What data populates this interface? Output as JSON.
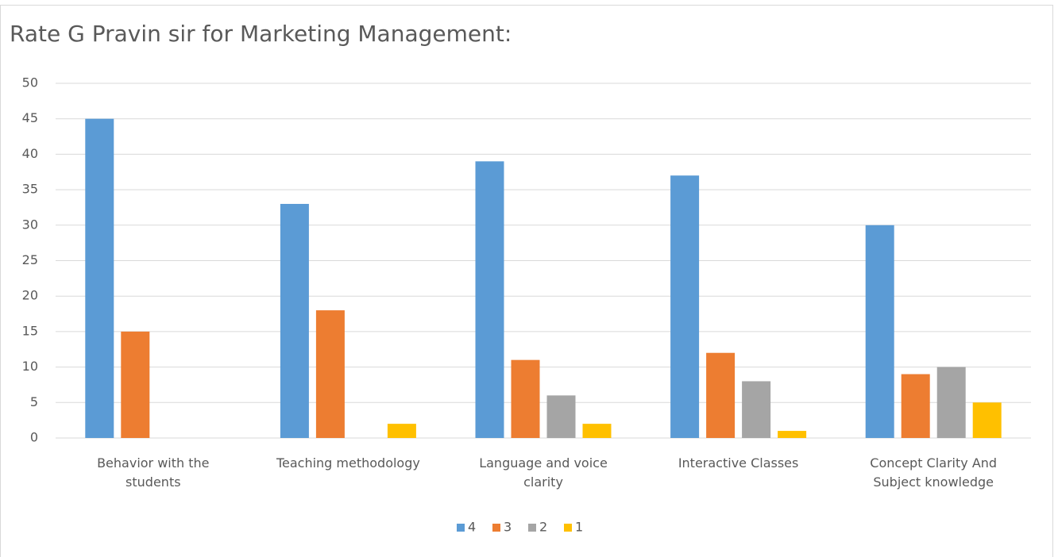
{
  "chart_data": {
    "type": "bar",
    "title": "Rate G Pravin sir for Marketing Management:",
    "categories": [
      "Behavior with the students",
      "Teaching methodology",
      "Language and voice clarity",
      "Interactive Classes",
      "Concept Clarity And Subject knowledge"
    ],
    "series": [
      {
        "name": "4",
        "color": "#5b9bd5",
        "values": [
          45,
          33,
          39,
          37,
          30
        ]
      },
      {
        "name": "3",
        "color": "#ed7d31",
        "values": [
          15,
          18,
          11,
          12,
          9
        ]
      },
      {
        "name": "2",
        "color": "#a5a5a5",
        "values": [
          0,
          0,
          6,
          8,
          10
        ]
      },
      {
        "name": "1",
        "color": "#ffc000",
        "values": [
          0,
          2,
          2,
          1,
          5
        ]
      }
    ],
    "ylim": [
      0,
      50
    ],
    "yticks": [
      0,
      5,
      10,
      15,
      20,
      25,
      30,
      35,
      40,
      45,
      50
    ],
    "grid": true,
    "legend": "bottom"
  }
}
